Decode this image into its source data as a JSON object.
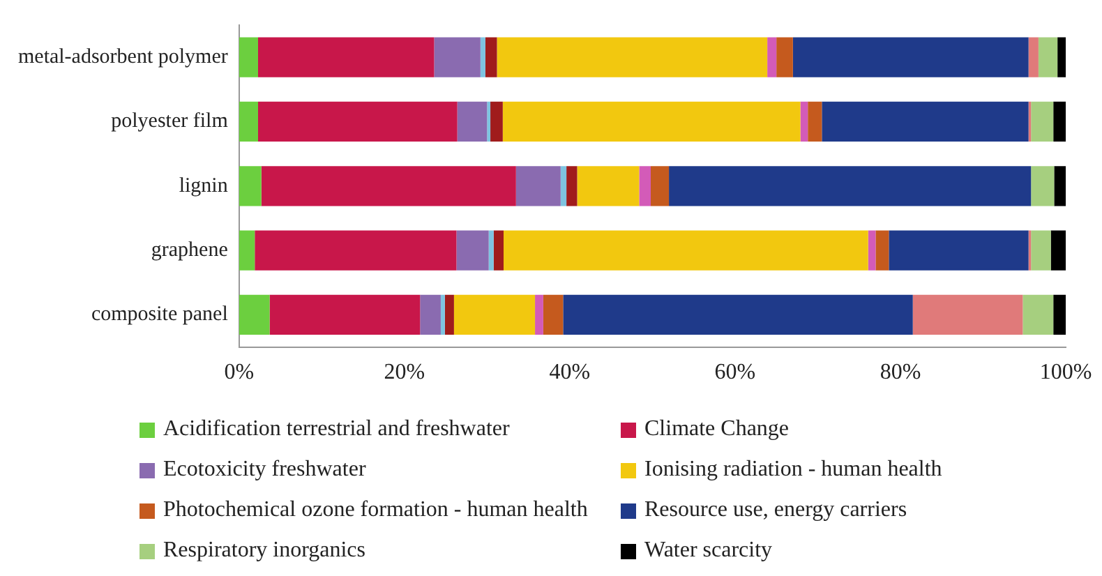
{
  "chart_data": {
    "type": "bar",
    "orientation": "horizontal",
    "stacked": true,
    "categories": [
      "metal-adsorbent polymer",
      "polyester film",
      "lignin",
      "graphene",
      "composite panel"
    ],
    "series": [
      {
        "name": "Acidification terrestrial and freshwater",
        "color": "#6ccf3f",
        "values": [
          2.3,
          2.3,
          2.7,
          1.9,
          3.7
        ]
      },
      {
        "name": "Climate Change",
        "color": "#c8174a",
        "values": [
          21.3,
          24.1,
          30.8,
          24.4,
          18.2
        ]
      },
      {
        "name": "Ecotoxicity freshwater",
        "color": "#8a6bb0",
        "values": [
          5.6,
          3.6,
          5.4,
          3.9,
          2.5
        ]
      },
      {
        "color": "#7fc4e0",
        "values": [
          0.6,
          0.4,
          0.7,
          0.6,
          0.5
        ]
      },
      {
        "color": "#a01c1c",
        "values": [
          1.4,
          1.5,
          1.3,
          1.2,
          1.1
        ]
      },
      {
        "name": "Ionising radiation - human health",
        "color": "#f2c80f",
        "values": [
          32.7,
          36.0,
          7.5,
          44.1,
          9.8
        ]
      },
      {
        "color": "#d35bb8",
        "values": [
          1.1,
          0.9,
          1.4,
          0.9,
          1.0
        ]
      },
      {
        "name": "Photochemical ozone formation - human health",
        "color": "#c55a1e",
        "values": [
          2.0,
          1.7,
          2.2,
          1.6,
          2.4
        ]
      },
      {
        "name": "Resource use, energy carriers",
        "color": "#1f3a8a",
        "values": [
          28.5,
          25.0,
          43.8,
          16.9,
          42.3
        ]
      },
      {
        "color": "#e07a7a",
        "values": [
          1.2,
          0.3,
          0,
          0.3,
          13.3
        ]
      },
      {
        "name": "Respiratory inorganics",
        "color": "#a6cf7f",
        "values": [
          2.3,
          2.7,
          2.8,
          2.4,
          3.7
        ]
      },
      {
        "name": "Water scarcity",
        "color": "#000000",
        "values": [
          1.0,
          1.5,
          1.4,
          1.8,
          1.5
        ]
      }
    ],
    "xlim": [
      0,
      100
    ],
    "xticks": [
      {
        "value": 0,
        "label": "0%"
      },
      {
        "value": 20,
        "label": "20%"
      },
      {
        "value": 40,
        "label": "40%"
      },
      {
        "value": 60,
        "label": "60%"
      },
      {
        "value": 80,
        "label": "80%"
      },
      {
        "value": 100,
        "label": "100%"
      }
    ],
    "grid": false,
    "legend": "bottom"
  }
}
